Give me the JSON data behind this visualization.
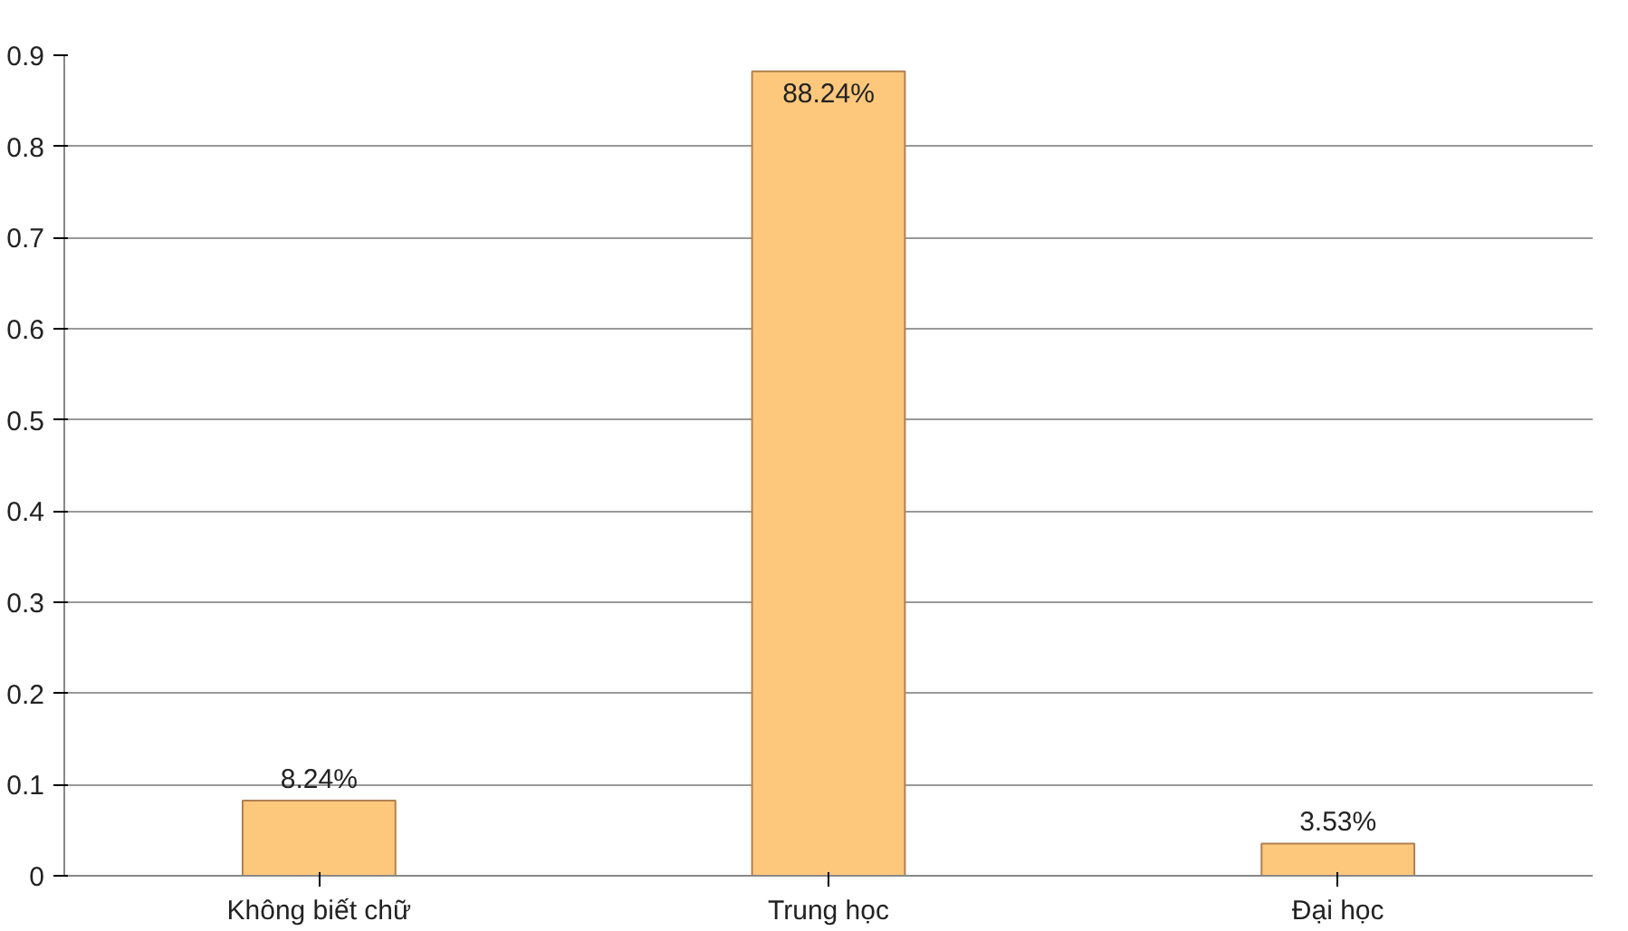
{
  "chart_data": {
    "type": "bar",
    "categories": [
      "Không biết chữ",
      "Trung học",
      "Đại học"
    ],
    "values": [
      0.0824,
      0.8824,
      0.0353
    ],
    "value_labels": [
      "8.24%",
      "88.24%",
      "3.53%"
    ],
    "color": "#fec87c",
    "ylim": [
      0,
      0.9
    ],
    "yticks": [
      0,
      0.1,
      0.2,
      0.3,
      0.4,
      0.5,
      0.6,
      0.7,
      0.8,
      0.9
    ],
    "grid": "y"
  }
}
